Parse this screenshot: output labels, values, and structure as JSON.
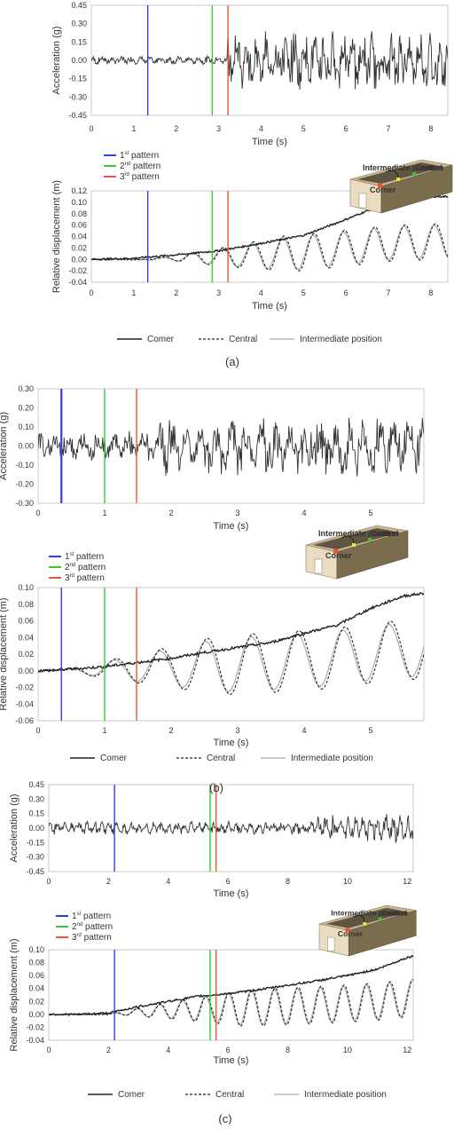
{
  "colors": {
    "pattern1": "#3b3bd9",
    "pattern2": "#33cc33",
    "pattern3": "#e8553a",
    "corner": "#222222",
    "central": "#222222",
    "intermediate": "#aaaaaa"
  },
  "chart_data": [
    {
      "panel": "a",
      "type": "line",
      "xlabel": "Time (s)",
      "ylabel": "Acceleration (g)",
      "xlim": [
        0,
        8.4
      ],
      "ylim": [
        -0.45,
        0.45
      ],
      "xticks": [
        0,
        1,
        2,
        3,
        4,
        5,
        6,
        7,
        8
      ],
      "yticks": [
        -0.45,
        -0.3,
        -0.15,
        0,
        0.15,
        0.3,
        0.45
      ],
      "yticklabels": [
        "-0.45",
        "-0.30",
        "-0.15",
        "0.00",
        "0.15",
        "0.30",
        "0.45"
      ],
      "grid": false,
      "markers": [
        1.33,
        2.85,
        3.22
      ],
      "signal": {
        "amp_early": 0.03,
        "amp_late": 0.22,
        "change_x": 3.2,
        "freq": 4.4
      }
    },
    {
      "panel": "a",
      "type": "line",
      "xlabel": "Time (s)",
      "ylabel": "Relative displacement (m)",
      "xlim": [
        0,
        8.4
      ],
      "ylim": [
        -0.04,
        0.12
      ],
      "xticks": [
        0,
        1,
        2,
        3,
        4,
        5,
        6,
        7,
        8
      ],
      "yticks": [
        -0.04,
        -0.02,
        0,
        0.02,
        0.04,
        0.06,
        0.08,
        0.1,
        0.12
      ],
      "yticklabels": [
        "-0.04",
        "-0.02",
        "0.00",
        "0.02",
        "0.04",
        "0.06",
        "0.08",
        "0.10",
        "0.12"
      ],
      "grid": false,
      "markers": [
        1.33,
        2.85,
        3.22
      ],
      "series": [
        {
          "name": "Corner",
          "style": "solid-dark",
          "x": [
            0,
            1,
            2,
            3,
            4,
            5,
            6,
            7,
            8,
            8.4
          ],
          "y": [
            0,
            0.002,
            0.008,
            0.015,
            0.028,
            0.042,
            0.07,
            0.1,
            0.11,
            0.11
          ]
        },
        {
          "name": "Central",
          "style": "dashed",
          "osc_amp_max": 0.035,
          "freq": 1.4,
          "start": 1.5
        },
        {
          "name": "Intermediate position",
          "style": "solid-light",
          "osc_amp_max": 0.032,
          "freq": 1.4,
          "start": 1.5
        }
      ],
      "legend": [
        {
          "key": "pattern1",
          "label_pre": "1",
          "sup": "st",
          "label_post": " pattern"
        },
        {
          "key": "pattern2",
          "label_pre": "2",
          "sup": "nd",
          "label_post": " pattern"
        },
        {
          "key": "pattern3",
          "label_pre": "3",
          "sup": "rd",
          "label_post": " pattern"
        }
      ],
      "legend_placement": "top-left",
      "inset_labels": {
        "intermediate": "Intermediate position",
        "central": "Central",
        "corner": "Corner"
      }
    },
    {
      "panel": "b",
      "type": "line",
      "xlabel": "Time (s)",
      "ylabel": "Acceleration (g)",
      "xlim": [
        0,
        5.8
      ],
      "ylim": [
        -0.3,
        0.3
      ],
      "xticks": [
        0,
        1,
        2,
        3,
        4,
        5
      ],
      "yticks": [
        -0.3,
        -0.2,
        -0.1,
        0,
        0.1,
        0.2,
        0.3
      ],
      "yticklabels": [
        "-0.30",
        "-0.20",
        "-0.10",
        "0.00",
        "0.10",
        "0.20",
        "0.30"
      ],
      "grid": false,
      "markers": [
        0.35,
        1.0,
        1.48
      ],
      "signal": {
        "amp_early": 0.07,
        "amp_late": 0.14,
        "change_x": 1.8,
        "freq": 4.5
      }
    },
    {
      "panel": "b",
      "type": "line",
      "xlabel": "Time (s)",
      "ylabel": "Relative displacement (m)",
      "xlim": [
        0,
        5.8
      ],
      "ylim": [
        -0.06,
        0.1
      ],
      "xticks": [
        0,
        1,
        2,
        3,
        4,
        5
      ],
      "yticks": [
        -0.06,
        -0.04,
        -0.02,
        0,
        0.02,
        0.04,
        0.06,
        0.08,
        0.1
      ],
      "yticklabels": [
        "-0.06",
        "-0.04",
        "-0.02",
        "0.00",
        "0.02",
        "0.04",
        "0.06",
        "0.08",
        "0.10"
      ],
      "grid": false,
      "markers": [
        0.35,
        1.0,
        1.48
      ],
      "series": [
        {
          "name": "Corner",
          "style": "solid-dark",
          "x": [
            0,
            0.5,
            1,
            1.5,
            2,
            2.5,
            3,
            3.5,
            4,
            4.5,
            5,
            5.5,
            5.8
          ],
          "y": [
            0,
            0.002,
            0.005,
            0.01,
            0.015,
            0.022,
            0.028,
            0.034,
            0.045,
            0.055,
            0.075,
            0.09,
            0.093
          ]
        },
        {
          "name": "Central",
          "style": "dashed",
          "osc_amp_max": 0.04,
          "freq": 1.45,
          "start": 0.3
        },
        {
          "name": "Intermediate position",
          "style": "solid-light",
          "osc_amp_max": 0.036,
          "freq": 1.45,
          "start": 0.3
        }
      ],
      "legend": [
        {
          "key": "pattern1",
          "label_pre": "1",
          "sup": "st",
          "label_post": " pattern"
        },
        {
          "key": "pattern2",
          "label_pre": "2",
          "sup": "nd",
          "label_post": " pattern"
        },
        {
          "key": "pattern3",
          "label_pre": "3",
          "sup": "rd",
          "label_post": " pattern"
        }
      ],
      "legend_placement": "top-left",
      "inset_labels": {
        "intermediate": "Intermediate position",
        "central": "Central",
        "corner": "Corner"
      }
    },
    {
      "panel": "c",
      "type": "line",
      "xlabel": "Time (s)",
      "ylabel": "Acceleration (g)",
      "xlim": [
        0,
        12.2
      ],
      "ylim": [
        -0.45,
        0.45
      ],
      "xticks": [
        0,
        2,
        4,
        6,
        8,
        10,
        12
      ],
      "yticks": [
        -0.45,
        -0.3,
        -0.15,
        0,
        0.15,
        0.3,
        0.45
      ],
      "yticklabels": [
        "-0.45",
        "-0.30",
        "-0.15",
        "0.00",
        "0.15",
        "0.30",
        "0.45"
      ],
      "grid": false,
      "markers": [
        2.2,
        5.4,
        5.6
      ],
      "signal": {
        "amp_early": 0.06,
        "amp_late": 0.13,
        "change_x": 9.0,
        "freq": 4.0
      }
    },
    {
      "panel": "c",
      "type": "line",
      "xlabel": "Time (s)",
      "ylabel": "Relative displacement (m)",
      "xlim": [
        0,
        12.2
      ],
      "ylim": [
        -0.04,
        0.1
      ],
      "xticks": [
        0,
        2,
        4,
        6,
        8,
        10,
        12
      ],
      "yticks": [
        -0.04,
        -0.02,
        0,
        0.02,
        0.04,
        0.06,
        0.08,
        0.1
      ],
      "yticklabels": [
        "-0.04",
        "-0.02",
        "0.00",
        "0.02",
        "0.04",
        "0.06",
        "0.08",
        "0.10"
      ],
      "grid": false,
      "markers": [
        2.2,
        5.4,
        5.6
      ],
      "series": [
        {
          "name": "Corner",
          "style": "solid-dark",
          "x": [
            0,
            1,
            2,
            3,
            4,
            5,
            6,
            7,
            8,
            9,
            10,
            11,
            12,
            12.2
          ],
          "y": [
            0,
            0,
            0.002,
            0.012,
            0.02,
            0.028,
            0.032,
            0.038,
            0.045,
            0.052,
            0.06,
            0.07,
            0.088,
            0.09
          ]
        },
        {
          "name": "Central",
          "style": "dashed",
          "osc_amp_max": 0.032,
          "freq": 1.3,
          "start": 2.0
        },
        {
          "name": "Intermediate position",
          "style": "solid-light",
          "osc_amp_max": 0.03,
          "freq": 1.3,
          "start": 2.0
        }
      ],
      "legend": [
        {
          "key": "pattern1",
          "label_pre": "1",
          "sup": "st",
          "label_post": " pattern"
        },
        {
          "key": "pattern2",
          "label_pre": "2",
          "sup": "nd",
          "label_post": " pattern"
        },
        {
          "key": "pattern3",
          "label_pre": "3",
          "sup": "rd",
          "label_post": " pattern"
        }
      ],
      "legend_placement": "top-left",
      "inset_labels": {
        "intermediate": "Intermediate position",
        "central": "Central",
        "corner": "Corner"
      }
    }
  ],
  "bottom_legends": [
    {
      "panel": "a",
      "items": [
        {
          "name": "Comer",
          "style": "solid-dark"
        },
        {
          "name": "Central",
          "style": "dashed"
        },
        {
          "name": "Intermediate position",
          "style": "solid-light"
        }
      ]
    },
    {
      "panel": "b",
      "items": [
        {
          "name": "Comer",
          "style": "solid-dark"
        },
        {
          "name": "Central",
          "style": "dashed"
        },
        {
          "name": "Intermediate position",
          "style": "solid-light"
        }
      ]
    },
    {
      "panel": "c",
      "items": [
        {
          "name": "Comer",
          "style": "solid-dark"
        },
        {
          "name": "Central",
          "style": "dashed"
        },
        {
          "name": "Intermediate position",
          "style": "solid-light"
        }
      ]
    }
  ],
  "captions": [
    "(a)",
    "(b)",
    "(c)"
  ]
}
